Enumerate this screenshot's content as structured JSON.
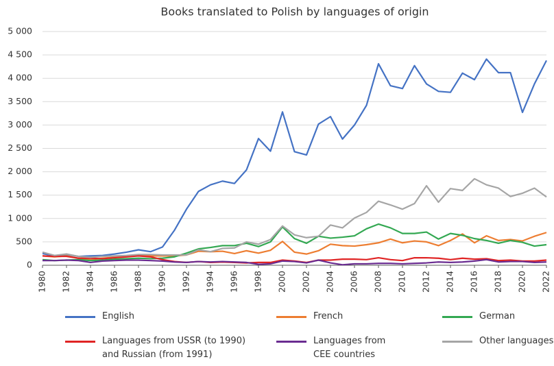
{
  "chart_data": {
    "type": "line",
    "title": "Books translated to Polish by languages of origin",
    "x": [
      1980,
      1981,
      1982,
      1983,
      1984,
      1985,
      1986,
      1987,
      1988,
      1989,
      1990,
      1991,
      1992,
      1993,
      1994,
      1995,
      1996,
      1997,
      1998,
      1999,
      2000,
      2001,
      2002,
      2003,
      2004,
      2005,
      2006,
      2007,
      2008,
      2009,
      2010,
      2011,
      2012,
      2013,
      2014,
      2015,
      2016,
      2017,
      2018,
      2019,
      2020,
      2021,
      2022
    ],
    "xlim": [
      1980,
      2022
    ],
    "xticks": [
      1980,
      1982,
      1984,
      1986,
      1988,
      1990,
      1992,
      1994,
      1996,
      1998,
      2000,
      2002,
      2004,
      2006,
      2008,
      2010,
      2012,
      2014,
      2016,
      2018,
      2020,
      2022
    ],
    "ylim": [
      0,
      5000
    ],
    "yticks": [
      0,
      500,
      {
        "value": 1000,
        "label": "1 000"
      },
      {
        "value": 1500,
        "label": "1 500"
      },
      {
        "value": 2000,
        "label": "2 000"
      },
      {
        "value": 2500,
        "label": "2 500"
      },
      {
        "value": 3000,
        "label": "3 000"
      },
      {
        "value": 3500,
        "label": "3 500"
      },
      {
        "value": 4000,
        "label": "4 000"
      },
      {
        "value": 4500,
        "label": "4 500"
      },
      {
        "value": 5000,
        "label": "5 000"
      }
    ],
    "grid": true,
    "legend": "bottom",
    "series": [
      {
        "name": "English",
        "color": "#4472c4",
        "values": [
          250,
          200,
          230,
          190,
          200,
          210,
          240,
          280,
          330,
          290,
          390,
          750,
          1200,
          1580,
          1720,
          1800,
          1750,
          2040,
          2710,
          2440,
          3280,
          2430,
          2360,
          3020,
          3180,
          2700,
          3000,
          3420,
          4310,
          3840,
          3780,
          4270,
          3880,
          3720,
          3700,
          4110,
          3970,
          4410,
          4120,
          4120,
          3270,
          3880,
          4380
        ]
      },
      {
        "name": "French",
        "color": "#ed7d31",
        "values": [
          200,
          180,
          200,
          150,
          120,
          150,
          170,
          200,
          220,
          200,
          200,
          200,
          220,
          300,
          290,
          300,
          250,
          310,
          260,
          320,
          510,
          280,
          240,
          310,
          450,
          420,
          410,
          440,
          480,
          560,
          480,
          520,
          500,
          420,
          530,
          670,
          480,
          630,
          530,
          550,
          520,
          620,
          700
        ]
      },
      {
        "name": "German",
        "color": "#33a852",
        "values": [
          120,
          100,
          110,
          120,
          100,
          110,
          130,
          140,
          150,
          140,
          150,
          180,
          260,
          350,
          380,
          420,
          420,
          470,
          400,
          500,
          820,
          570,
          470,
          620,
          580,
          600,
          630,
          780,
          880,
          800,
          680,
          680,
          710,
          560,
          680,
          640,
          570,
          530,
          470,
          530,
          490,
          410,
          440
        ]
      },
      {
        "name": "Languages from USSR (to 1990)\nand Russian (from 1991)",
        "color": "#e02424",
        "values": [
          200,
          190,
          190,
          150,
          150,
          140,
          160,
          180,
          200,
          180,
          120,
          80,
          60,
          80,
          60,
          70,
          60,
          50,
          60,
          60,
          110,
          90,
          60,
          110,
          110,
          130,
          130,
          120,
          160,
          120,
          100,
          160,
          160,
          150,
          120,
          150,
          130,
          140,
          100,
          110,
          90,
          90,
          110
        ]
      },
      {
        "name": "Languages from\nCEE countries",
        "color": "#6a2c91",
        "values": [
          100,
          100,
          110,
          100,
          60,
          90,
          100,
          110,
          110,
          100,
          90,
          70,
          60,
          80,
          70,
          80,
          70,
          60,
          20,
          30,
          90,
          80,
          50,
          110,
          50,
          10,
          30,
          30,
          40,
          40,
          30,
          40,
          50,
          70,
          60,
          70,
          90,
          120,
          70,
          80,
          80,
          60,
          70
        ]
      },
      {
        "name": "Other languages",
        "color": "#a5a5a5",
        "values": [
          280,
          210,
          240,
          190,
          170,
          190,
          200,
          210,
          230,
          230,
          220,
          220,
          220,
          330,
          290,
          360,
          370,
          500,
          450,
          550,
          840,
          650,
          590,
          620,
          860,
          800,
          1010,
          1130,
          1370,
          1290,
          1200,
          1320,
          1700,
          1350,
          1640,
          1600,
          1850,
          1720,
          1650,
          1470,
          1540,
          1650,
          1460
        ]
      }
    ]
  }
}
